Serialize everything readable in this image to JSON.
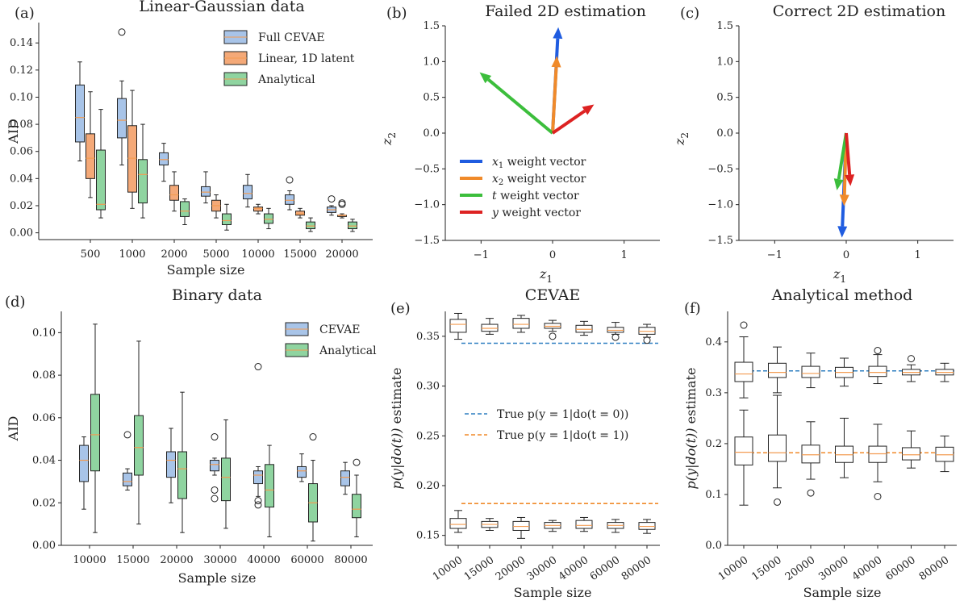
{
  "colors": {
    "blue_box": "#a8c4e8",
    "orange_box": "#f4a978",
    "green_box": "#8fd4a0",
    "median_orange": "#f39c52",
    "x1_vec": "#1f5ce0",
    "x2_vec": "#f08a2a",
    "t_vec": "#3cbe3c",
    "y_vec": "#dd2222",
    "true_t0": "#2f7fc1",
    "true_t1": "#f08a2a"
  },
  "chart_data": [
    {
      "id": "a",
      "panel_label": "(a)",
      "type": "box",
      "title": "Linear-Gaussian data",
      "xlabel": "Sample size",
      "ylabel": "AID",
      "ylim": [
        -0.005,
        0.155
      ],
      "yticks": [
        "0.00",
        "0.02",
        "0.04",
        "0.06",
        "0.08",
        "0.10",
        "0.12",
        "0.14"
      ],
      "categories": [
        "500",
        "1000",
        "2000",
        "5000",
        "10000",
        "15000",
        "20000"
      ],
      "legend": [
        "Full CEVAE",
        "Linear, 1D latent",
        "Analytical"
      ],
      "series": [
        {
          "name": "Full CEVAE",
          "color": "blue_box",
          "boxes": [
            {
              "min": 0.053,
              "q1": 0.067,
              "med": 0.085,
              "q3": 0.109,
              "max": 0.126,
              "fliers": []
            },
            {
              "min": 0.05,
              "q1": 0.07,
              "med": 0.083,
              "q3": 0.099,
              "max": 0.112,
              "fliers": [
                0.148
              ]
            },
            {
              "min": 0.038,
              "q1": 0.05,
              "med": 0.054,
              "q3": 0.059,
              "max": 0.066,
              "fliers": []
            },
            {
              "min": 0.022,
              "q1": 0.027,
              "med": 0.03,
              "q3": 0.034,
              "max": 0.045,
              "fliers": []
            },
            {
              "min": 0.019,
              "q1": 0.025,
              "med": 0.029,
              "q3": 0.035,
              "max": 0.043,
              "fliers": []
            },
            {
              "min": 0.017,
              "q1": 0.021,
              "med": 0.024,
              "q3": 0.028,
              "max": 0.031,
              "fliers": [
                0.039
              ]
            },
            {
              "min": 0.013,
              "q1": 0.015,
              "med": 0.017,
              "q3": 0.019,
              "max": 0.02,
              "fliers": [
                0.025
              ]
            }
          ]
        },
        {
          "name": "Linear, 1D latent",
          "color": "orange_box",
          "boxes": [
            {
              "min": 0.026,
              "q1": 0.04,
              "med": 0.055,
              "q3": 0.073,
              "max": 0.104,
              "fliers": []
            },
            {
              "min": 0.018,
              "q1": 0.03,
              "med": 0.055,
              "q3": 0.079,
              "max": 0.105,
              "fliers": []
            },
            {
              "min": 0.016,
              "q1": 0.024,
              "med": 0.028,
              "q3": 0.035,
              "max": 0.045,
              "fliers": []
            },
            {
              "min": 0.011,
              "q1": 0.016,
              "med": 0.02,
              "q3": 0.024,
              "max": 0.028,
              "fliers": []
            },
            {
              "min": 0.014,
              "q1": 0.016,
              "med": 0.018,
              "q3": 0.019,
              "max": 0.021,
              "fliers": []
            },
            {
              "min": 0.011,
              "q1": 0.013,
              "med": 0.014,
              "q3": 0.016,
              "max": 0.018,
              "fliers": []
            },
            {
              "min": 0.011,
              "q1": 0.012,
              "med": 0.013,
              "q3": 0.013,
              "max": 0.014,
              "fliers": [
                0.021,
                0.022
              ]
            }
          ]
        },
        {
          "name": "Analytical",
          "color": "green_box",
          "boxes": [
            {
              "min": 0.011,
              "q1": 0.017,
              "med": 0.021,
              "q3": 0.061,
              "max": 0.091,
              "fliers": []
            },
            {
              "min": 0.011,
              "q1": 0.022,
              "med": 0.043,
              "q3": 0.054,
              "max": 0.08,
              "fliers": []
            },
            {
              "min": 0.006,
              "q1": 0.012,
              "med": 0.016,
              "q3": 0.023,
              "max": 0.025,
              "fliers": []
            },
            {
              "min": 0.002,
              "q1": 0.006,
              "med": 0.009,
              "q3": 0.014,
              "max": 0.021,
              "fliers": []
            },
            {
              "min": 0.003,
              "q1": 0.007,
              "med": 0.01,
              "q3": 0.014,
              "max": 0.018,
              "fliers": []
            },
            {
              "min": 0.001,
              "q1": 0.003,
              "med": 0.005,
              "q3": 0.008,
              "max": 0.011,
              "fliers": []
            },
            {
              "min": 0.001,
              "q1": 0.003,
              "med": 0.005,
              "q3": 0.008,
              "max": 0.01,
              "fliers": []
            }
          ]
        }
      ]
    },
    {
      "id": "b",
      "panel_label": "(b)",
      "type": "vector",
      "title": "Failed 2D estimation",
      "xlabel": "z1",
      "ylabel": "z2",
      "xlim": [
        -1.5,
        1.5
      ],
      "ylim": [
        -1.5,
        1.5
      ],
      "xticks": [
        "−1",
        "0",
        "1"
      ],
      "yticks": [
        "−1.5",
        "−1.0",
        "−0.5",
        "0.0",
        "0.5",
        "1.0",
        "1.5"
      ],
      "legend": [
        {
          "var": "x",
          "sub": "1",
          "text": " weight vector",
          "color": "x1_vec"
        },
        {
          "var": "x",
          "sub": "2",
          "text": " weight vector",
          "color": "x2_vec"
        },
        {
          "var": "t",
          "sub": "",
          "text": " weight vector",
          "color": "t_vec"
        },
        {
          "var": "y",
          "sub": "",
          "text": " weight vector",
          "color": "y_vec"
        }
      ],
      "vectors": [
        {
          "name": "x1",
          "color": "x1_vec",
          "dx": 0.08,
          "dy": 1.48
        },
        {
          "name": "x2",
          "color": "x2_vec",
          "dx": 0.06,
          "dy": 1.08
        },
        {
          "name": "t",
          "color": "t_vec",
          "dx": -1.02,
          "dy": 0.85
        },
        {
          "name": "y",
          "color": "y_vec",
          "dx": 0.58,
          "dy": 0.4
        }
      ]
    },
    {
      "id": "c",
      "panel_label": "(c)",
      "type": "vector",
      "title": "Correct 2D estimation",
      "xlabel": "z1",
      "ylabel": "z2",
      "xlim": [
        -1.5,
        1.5
      ],
      "ylim": [
        -1.5,
        1.5
      ],
      "xticks": [
        "−1",
        "0",
        "1"
      ],
      "yticks": [
        "−1.5",
        "−1.0",
        "−0.5",
        "0.0",
        "0.5",
        "1.0",
        "1.5"
      ],
      "vectors": [
        {
          "name": "x1",
          "color": "x1_vec",
          "dx": -0.06,
          "dy": -1.46
        },
        {
          "name": "x2",
          "color": "x2_vec",
          "dx": -0.03,
          "dy": -1.02
        },
        {
          "name": "t",
          "color": "t_vec",
          "dx": -0.13,
          "dy": -0.8
        },
        {
          "name": "y",
          "color": "y_vec",
          "dx": 0.06,
          "dy": -0.74
        }
      ]
    },
    {
      "id": "d",
      "panel_label": "(d)",
      "type": "box",
      "title": "Binary data",
      "xlabel": "Sample size",
      "ylabel": "AID",
      "ylim": [
        0.0,
        0.11
      ],
      "yticks": [
        "0.00",
        "0.02",
        "0.04",
        "0.06",
        "0.08",
        "0.10"
      ],
      "categories": [
        "10000",
        "15000",
        "20000",
        "30000",
        "40000",
        "60000",
        "80000"
      ],
      "legend": [
        "CEVAE",
        "Analytical"
      ],
      "series": [
        {
          "name": "CEVAE",
          "color": "blue_box",
          "boxes": [
            {
              "min": 0.017,
              "q1": 0.03,
              "med": 0.04,
              "q3": 0.047,
              "max": 0.051,
              "fliers": []
            },
            {
              "min": 0.026,
              "q1": 0.028,
              "med": 0.03,
              "q3": 0.034,
              "max": 0.036,
              "fliers": [
                0.052
              ]
            },
            {
              "min": 0.02,
              "q1": 0.032,
              "med": 0.04,
              "q3": 0.044,
              "max": 0.055,
              "fliers": []
            },
            {
              "min": 0.033,
              "q1": 0.035,
              "med": 0.038,
              "q3": 0.04,
              "max": 0.041,
              "fliers": [
                0.051,
                0.026,
                0.022
              ]
            },
            {
              "min": 0.023,
              "q1": 0.029,
              "med": 0.033,
              "q3": 0.035,
              "max": 0.037,
              "fliers": [
                0.084,
                0.021,
                0.019
              ]
            },
            {
              "min": 0.03,
              "q1": 0.032,
              "med": 0.035,
              "q3": 0.037,
              "max": 0.043,
              "fliers": []
            },
            {
              "min": 0.024,
              "q1": 0.028,
              "med": 0.032,
              "q3": 0.035,
              "max": 0.039,
              "fliers": []
            }
          ]
        },
        {
          "name": "Analytical",
          "color": "green_box",
          "boxes": [
            {
              "min": 0.006,
              "q1": 0.035,
              "med": 0.052,
              "q3": 0.071,
              "max": 0.104,
              "fliers": []
            },
            {
              "min": 0.01,
              "q1": 0.033,
              "med": 0.046,
              "q3": 0.061,
              "max": 0.096,
              "fliers": []
            },
            {
              "min": 0.006,
              "q1": 0.022,
              "med": 0.036,
              "q3": 0.044,
              "max": 0.072,
              "fliers": []
            },
            {
              "min": 0.008,
              "q1": 0.021,
              "med": 0.032,
              "q3": 0.041,
              "max": 0.059,
              "fliers": []
            },
            {
              "min": 0.004,
              "q1": 0.018,
              "med": 0.026,
              "q3": 0.038,
              "max": 0.047,
              "fliers": []
            },
            {
              "min": 0.002,
              "q1": 0.011,
              "med": 0.02,
              "q3": 0.029,
              "max": 0.04,
              "fliers": [
                0.051
              ]
            },
            {
              "min": 0.004,
              "q1": 0.013,
              "med": 0.017,
              "q3": 0.024,
              "max": 0.033,
              "fliers": [
                0.039
              ]
            }
          ]
        }
      ]
    },
    {
      "id": "e",
      "panel_label": "(e)",
      "type": "box",
      "title": "CEVAE",
      "xlabel": "Sample size",
      "ylabel_parts": [
        "p(y|do(t))",
        " estimate"
      ],
      "ylim": [
        0.14,
        0.375
      ],
      "yticks": [
        "0.15",
        "0.20",
        "0.25",
        "0.30",
        "0.35"
      ],
      "categories": [
        "10000",
        "15000",
        "20000",
        "30000",
        "40000",
        "60000",
        "80000"
      ],
      "hlines": [
        {
          "value": 0.343,
          "color": "true_t0",
          "label": "True p(y = 1|do(t = 0))"
        },
        {
          "value": 0.182,
          "color": "true_t1",
          "label": "True p(y = 1|do(t = 1))"
        }
      ],
      "series": [
        {
          "name": "do(t=0)",
          "color": "none",
          "boxes": [
            {
              "min": 0.347,
              "q1": 0.354,
              "med": 0.362,
              "q3": 0.367,
              "max": 0.373,
              "fliers": []
            },
            {
              "min": 0.352,
              "q1": 0.355,
              "med": 0.358,
              "q3": 0.362,
              "max": 0.368,
              "fliers": []
            },
            {
              "min": 0.354,
              "q1": 0.358,
              "med": 0.362,
              "q3": 0.368,
              "max": 0.371,
              "fliers": []
            },
            {
              "min": 0.355,
              "q1": 0.358,
              "med": 0.36,
              "q3": 0.363,
              "max": 0.366,
              "fliers": [
                0.35
              ]
            },
            {
              "min": 0.351,
              "q1": 0.354,
              "med": 0.357,
              "q3": 0.361,
              "max": 0.365,
              "fliers": []
            },
            {
              "min": 0.352,
              "q1": 0.354,
              "med": 0.356,
              "q3": 0.359,
              "max": 0.364,
              "fliers": [
                0.349
              ]
            },
            {
              "min": 0.349,
              "q1": 0.352,
              "med": 0.355,
              "q3": 0.359,
              "max": 0.362,
              "fliers": [
                0.346
              ]
            }
          ]
        },
        {
          "name": "do(t=1)",
          "color": "none",
          "boxes": [
            {
              "min": 0.153,
              "q1": 0.157,
              "med": 0.161,
              "q3": 0.167,
              "max": 0.175,
              "fliers": []
            },
            {
              "min": 0.155,
              "q1": 0.158,
              "med": 0.161,
              "q3": 0.164,
              "max": 0.167,
              "fliers": []
            },
            {
              "min": 0.147,
              "q1": 0.155,
              "med": 0.159,
              "q3": 0.164,
              "max": 0.168,
              "fliers": []
            },
            {
              "min": 0.154,
              "q1": 0.157,
              "med": 0.16,
              "q3": 0.163,
              "max": 0.165,
              "fliers": []
            },
            {
              "min": 0.154,
              "q1": 0.157,
              "med": 0.16,
              "q3": 0.165,
              "max": 0.168,
              "fliers": []
            },
            {
              "min": 0.153,
              "q1": 0.157,
              "med": 0.16,
              "q3": 0.163,
              "max": 0.166,
              "fliers": []
            },
            {
              "min": 0.152,
              "q1": 0.156,
              "med": 0.159,
              "q3": 0.163,
              "max": 0.166,
              "fliers": []
            }
          ]
        }
      ]
    },
    {
      "id": "f",
      "panel_label": "(f)",
      "type": "box",
      "title": "Analytical method",
      "xlabel": "Sample size",
      "ylabel_parts": [
        "p(y|do(t))",
        " estimate"
      ],
      "ylim": [
        0.0,
        0.46
      ],
      "yticks": [
        "0.0",
        "0.1",
        "0.2",
        "0.3",
        "0.4"
      ],
      "categories": [
        "10000",
        "15000",
        "20000",
        "30000",
        "40000",
        "60000",
        "80000"
      ],
      "hlines": [
        {
          "value": 0.343,
          "color": "true_t0"
        },
        {
          "value": 0.182,
          "color": "true_t1"
        }
      ],
      "series": [
        {
          "name": "do(t=0)",
          "color": "none",
          "boxes": [
            {
              "min": 0.29,
              "q1": 0.322,
              "med": 0.337,
              "q3": 0.36,
              "max": 0.41,
              "fliers": [
                0.433
              ]
            },
            {
              "min": 0.3,
              "q1": 0.33,
              "med": 0.34,
              "q3": 0.358,
              "max": 0.39,
              "fliers": []
            },
            {
              "min": 0.31,
              "q1": 0.33,
              "med": 0.338,
              "q3": 0.352,
              "max": 0.378,
              "fliers": []
            },
            {
              "min": 0.313,
              "q1": 0.33,
              "med": 0.34,
              "q3": 0.35,
              "max": 0.368,
              "fliers": []
            },
            {
              "min": 0.318,
              "q1": 0.332,
              "med": 0.34,
              "q3": 0.352,
              "max": 0.375,
              "fliers": [
                0.383
              ]
            },
            {
              "min": 0.322,
              "q1": 0.335,
              "med": 0.34,
              "q3": 0.346,
              "max": 0.355,
              "fliers": [
                0.367
              ]
            },
            {
              "min": 0.322,
              "q1": 0.335,
              "med": 0.34,
              "q3": 0.346,
              "max": 0.358,
              "fliers": []
            }
          ]
        },
        {
          "name": "do(t=1)",
          "color": "none",
          "boxes": [
            {
              "min": 0.079,
              "q1": 0.158,
              "med": 0.183,
              "q3": 0.213,
              "max": 0.266,
              "fliers": []
            },
            {
              "min": 0.113,
              "q1": 0.165,
              "med": 0.182,
              "q3": 0.217,
              "max": 0.295,
              "fliers": [
                0.085
              ]
            },
            {
              "min": 0.13,
              "q1": 0.162,
              "med": 0.178,
              "q3": 0.197,
              "max": 0.243,
              "fliers": [
                0.103
              ]
            },
            {
              "min": 0.133,
              "q1": 0.163,
              "med": 0.178,
              "q3": 0.195,
              "max": 0.25,
              "fliers": []
            },
            {
              "min": 0.125,
              "q1": 0.163,
              "med": 0.18,
              "q3": 0.195,
              "max": 0.238,
              "fliers": [
                0.096
              ]
            },
            {
              "min": 0.152,
              "q1": 0.168,
              "med": 0.178,
              "q3": 0.192,
              "max": 0.225,
              "fliers": []
            },
            {
              "min": 0.145,
              "q1": 0.165,
              "med": 0.178,
              "q3": 0.193,
              "max": 0.215,
              "fliers": []
            }
          ]
        }
      ]
    }
  ]
}
